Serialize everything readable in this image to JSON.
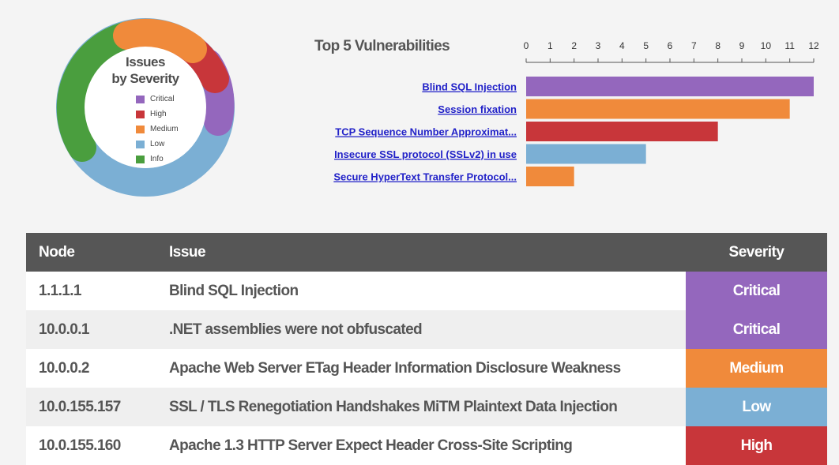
{
  "donut": {
    "title_line1": "Issues",
    "title_line2": "by Severity",
    "legend": [
      {
        "label": "Critical",
        "color": "#9467bd"
      },
      {
        "label": "High",
        "color": "#c8363a"
      },
      {
        "label": "Medium",
        "color": "#f08a3b"
      },
      {
        "label": "Low",
        "color": "#7bafd4"
      },
      {
        "label": "Info",
        "color": "#4a9e3e"
      }
    ]
  },
  "chart_data": {
    "type": "bar",
    "orientation": "horizontal",
    "title": "Top 5 Vulnerabilities",
    "categories": [
      "Blind SQL Injection",
      "Session fixation",
      "TCP Sequence Number Approximat...",
      "Insecure SSL protocol (SSLv2) in use",
      "Secure HyperText Transfer Protocol..."
    ],
    "values": [
      12,
      11,
      8,
      5,
      2
    ],
    "bar_colors": [
      "#9467bd",
      "#f08a3b",
      "#c8363a",
      "#7bafd4",
      "#f08a3b"
    ],
    "xlim": [
      0,
      12
    ],
    "xticks": [
      0,
      1,
      2,
      3,
      4,
      5,
      6,
      7,
      8,
      9,
      10,
      11,
      12
    ],
    "axis_position": "top",
    "grid": false
  },
  "table": {
    "headers": {
      "node": "Node",
      "issue": "Issue",
      "severity": "Severity"
    },
    "rows": [
      {
        "node": "1.1.1.1",
        "issue": "Blind SQL Injection",
        "severity": "Critical",
        "color": "#9467bd"
      },
      {
        "node": "10.0.0.1",
        "issue": ".NET assemblies were not obfuscated",
        "severity": "Critical",
        "color": "#9467bd"
      },
      {
        "node": "10.0.0.2",
        "issue": "Apache Web Server ETag Header Information Disclosure Weakness",
        "severity": "Medium",
        "color": "#f08a3b"
      },
      {
        "node": "10.0.155.157",
        "issue": "SSL / TLS Renegotiation Handshakes MiTM Plaintext Data Injection",
        "severity": "Low",
        "color": "#7bafd4"
      },
      {
        "node": "10.0.155.160",
        "issue": "Apache 1.3 HTTP Server Expect Header Cross-Site Scripting",
        "severity": "High",
        "color": "#c8363a"
      }
    ]
  }
}
